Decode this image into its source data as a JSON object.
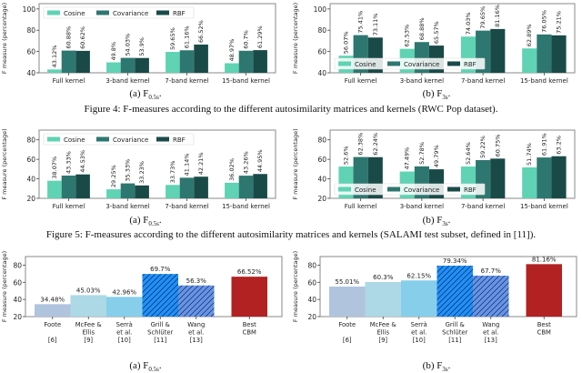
{
  "figures": [
    {
      "caption": "Figure 4: F-measures according to the different autosimilarity matrices and kernels (RWC Pop dataset)."
    },
    {
      "caption": "Figure 5: F-measures according to the different autosimilarity matrices and kernels (SALAMI test subset, defined in [11])."
    }
  ],
  "subcaptions": [
    {
      "prefix": "(a) F",
      "sub": "0.5s",
      "suffix": "."
    },
    {
      "prefix": "(b) F",
      "sub": "3s",
      "suffix": "."
    },
    {
      "prefix": "(a) F",
      "sub": "0.5s",
      "suffix": "."
    },
    {
      "prefix": "(b) F",
      "sub": "3s",
      "suffix": "."
    },
    {
      "prefix": "(a) F",
      "sub": "0.5s",
      "suffix": "."
    },
    {
      "prefix": "(b) F",
      "sub": "3s",
      "suffix": "."
    }
  ],
  "colors": {
    "cosine": "#5fd3b3",
    "covariance": "#2e7770",
    "rbf": "#194a47",
    "foote": "#b0c4de",
    "mcfee": "#add8e6",
    "serra": "#87ceeb",
    "grill": "#1e90ff",
    "wang": "#6495ed",
    "cbm": "#b22222"
  },
  "chart_data": [
    {
      "id": "fig4a",
      "type": "bar",
      "title": "",
      "xlabel": "",
      "ylabel": "F measure (percentage)",
      "ylim": [
        40,
        105
      ],
      "yticks": [
        40,
        60,
        80,
        100
      ],
      "legend": "top-left",
      "categories": [
        "Full kernel",
        "3-band kernel",
        "7-band kernel",
        "15-band kernel"
      ],
      "series": [
        {
          "name": "Cosine",
          "color_key": "cosine",
          "values": [
            43.12,
            49.8,
            59.65,
            48.97
          ],
          "labels": [
            "43.12%",
            "49.8%",
            "59.65%",
            "48.97%"
          ]
        },
        {
          "name": "Covariance",
          "color_key": "covariance",
          "values": [
            60.88,
            54.03,
            61.16,
            60.7
          ],
          "labels": [
            "60.88%",
            "54.03%",
            "61.16%",
            "60.7%"
          ]
        },
        {
          "name": "RBF",
          "color_key": "rbf",
          "values": [
            60.62,
            53.9,
            66.52,
            61.29
          ],
          "labels": [
            "60.62%",
            "53.9%",
            "66.52%",
            "61.29%"
          ]
        }
      ]
    },
    {
      "id": "fig4b",
      "type": "bar",
      "title": "",
      "xlabel": "",
      "ylabel": "F measure (percentage)",
      "ylim": [
        40,
        105
      ],
      "yticks": [
        40,
        60,
        80,
        100
      ],
      "legend": "bottom-left",
      "categories": [
        "Full kernel",
        "3-band kernel",
        "7-band kernel",
        "15-band kernel"
      ],
      "series": [
        {
          "name": "Cosine",
          "color_key": "cosine",
          "values": [
            56.07,
            62.53,
            74.03,
            62.89
          ],
          "labels": [
            "56.07%",
            "62.53%",
            "74.03%",
            "62.89%"
          ]
        },
        {
          "name": "Covariance",
          "color_key": "covariance",
          "values": [
            75.41,
            68.88,
            79.65,
            76.05
          ],
          "labels": [
            "75.41%",
            "68.88%",
            "79.65%",
            "76.05%"
          ]
        },
        {
          "name": "RBF",
          "color_key": "rbf",
          "values": [
            73.11,
            65.57,
            81.16,
            75.21
          ],
          "labels": [
            "73.11%",
            "65.57%",
            "81.16%",
            "75.21%"
          ]
        }
      ]
    },
    {
      "id": "fig5a",
      "type": "bar",
      "title": "",
      "xlabel": "",
      "ylabel": "F measure (percentage)",
      "ylim": [
        20,
        90
      ],
      "yticks": [
        20,
        40,
        60,
        80
      ],
      "legend": "top-left",
      "categories": [
        "Full kernel",
        "3-band kernel",
        "7-band kernel",
        "15-band kernel"
      ],
      "series": [
        {
          "name": "Cosine",
          "color_key": "cosine",
          "values": [
            38.07,
            29.25,
            33.73,
            36.02
          ],
          "labels": [
            "38.07%",
            "29.25%",
            "33.73%",
            "36.02%"
          ]
        },
        {
          "name": "Covariance",
          "color_key": "covariance",
          "values": [
            43.33,
            35.33,
            41.14,
            43.26
          ],
          "labels": [
            "43.33%",
            "35.33%",
            "41.14%",
            "43.26%"
          ]
        },
        {
          "name": "RBF",
          "color_key": "rbf",
          "values": [
            44.53,
            33.23,
            42.21,
            44.95
          ],
          "labels": [
            "44.53%",
            "33.23%",
            "42.21%",
            "44.95%"
          ]
        }
      ]
    },
    {
      "id": "fig5b",
      "type": "bar",
      "title": "",
      "xlabel": "",
      "ylabel": "F measure (percentage)",
      "ylim": [
        20,
        90
      ],
      "yticks": [
        20,
        40,
        60,
        80
      ],
      "legend": "bottom-left",
      "categories": [
        "Full kernel",
        "3-band kernel",
        "7-band kernel",
        "15-band kernel"
      ],
      "series": [
        {
          "name": "Cosine",
          "color_key": "cosine",
          "values": [
            52.6,
            47.49,
            52.64,
            51.74
          ],
          "labels": [
            "52.6%",
            "47.49%",
            "52.64%",
            "51.74%"
          ]
        },
        {
          "name": "Covariance",
          "color_key": "covariance",
          "values": [
            62.38,
            52.78,
            59.22,
            61.91
          ],
          "labels": [
            "62.38%",
            "52.78%",
            "59.22%",
            "61.91%"
          ]
        },
        {
          "name": "RBF",
          "color_key": "rbf",
          "values": [
            62.24,
            49.79,
            60.75,
            63.2
          ],
          "labels": [
            "62.24%",
            "49.79%",
            "60.75%",
            "63.2%"
          ]
        }
      ]
    },
    {
      "id": "fig6a",
      "type": "bar",
      "title": "",
      "xlabel": "",
      "ylabel": "F measure (percentage)",
      "ylim": [
        20,
        90
      ],
      "yticks": [
        20,
        40,
        60,
        80
      ],
      "legend": "none",
      "categories": [
        {
          "lines": [
            "Foote",
            "",
            "[6]"
          ],
          "color_key": "foote",
          "hatch": false
        },
        {
          "lines": [
            "McFee &",
            "Ellis",
            "[9]"
          ],
          "color_key": "mcfee",
          "hatch": false
        },
        {
          "lines": [
            "Serrà",
            "et al.",
            "[10]"
          ],
          "color_key": "serra",
          "hatch": false
        },
        {
          "lines": [
            "Grill &",
            "Schlüter",
            "[11]"
          ],
          "color_key": "grill",
          "hatch": true
        },
        {
          "lines": [
            "Wang",
            "et al.",
            "[13]"
          ],
          "color_key": "wang",
          "hatch": true
        },
        {
          "lines": [
            "Best",
            "CBM"
          ],
          "color_key": "cbm",
          "hatch": false,
          "separate": true
        }
      ],
      "values": [
        34.48,
        45.03,
        42.96,
        69.7,
        56.3,
        66.52
      ],
      "labels": [
        "34.48%",
        "45.03%",
        "42.96%",
        "69.7%",
        "56.3%",
        "66.52%"
      ]
    },
    {
      "id": "fig6b",
      "type": "bar",
      "title": "",
      "xlabel": "",
      "ylabel": "F measure (percentage)",
      "ylim": [
        20,
        90
      ],
      "yticks": [
        20,
        40,
        60,
        80
      ],
      "legend": "none",
      "categories": [
        {
          "lines": [
            "Foote",
            "",
            "[6]"
          ],
          "color_key": "foote",
          "hatch": false
        },
        {
          "lines": [
            "McFee &",
            "Ellis",
            "[9]"
          ],
          "color_key": "mcfee",
          "hatch": false
        },
        {
          "lines": [
            "Serrà",
            "et al.",
            "[10]"
          ],
          "color_key": "serra",
          "hatch": false
        },
        {
          "lines": [
            "Grill &",
            "Schlüter",
            "[11]"
          ],
          "color_key": "grill",
          "hatch": true
        },
        {
          "lines": [
            "Wang",
            "et al.",
            "[13]"
          ],
          "color_key": "wang",
          "hatch": true
        },
        {
          "lines": [
            "Best",
            "CBM"
          ],
          "color_key": "cbm",
          "hatch": false,
          "separate": true
        }
      ],
      "values": [
        55.01,
        60.3,
        62.15,
        79.34,
        67.7,
        81.16
      ],
      "labels": [
        "55.01%",
        "60.3%",
        "62.15%",
        "79.34%",
        "67.7%",
        "81.16%"
      ]
    }
  ]
}
